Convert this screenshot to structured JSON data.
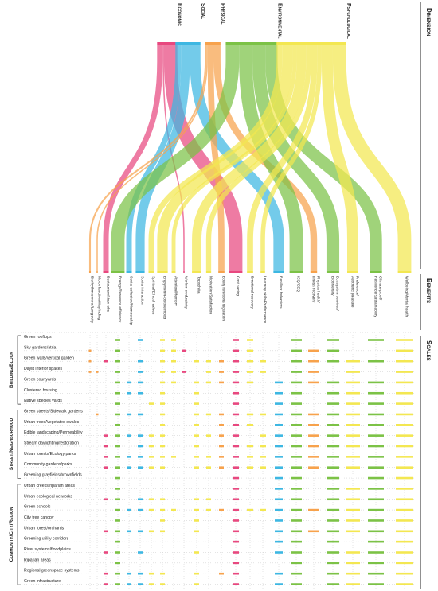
{
  "header": {
    "dimension_label": "Dimension",
    "benefits_label": "Benefits",
    "scales_label": "Scales"
  },
  "dimensions": [
    {
      "label": "Economic",
      "color": "#e8487f"
    },
    {
      "label": "Social",
      "color": "#3db7e2"
    },
    {
      "label": "Physical",
      "color": "#f7a24c"
    },
    {
      "label": "Environmental",
      "color": "#7cc246"
    },
    {
      "label": "Psychological",
      "color": "#f3e751"
    }
  ],
  "benefits": [
    {
      "label": [
        "Biorhythm control/Longevity"
      ],
      "dimension": 2
    },
    {
      "label": [
        "Motor function/Wayfinding"
      ],
      "dimension": 2
    },
    {
      "label": [
        "Ecotourism/New jobs"
      ],
      "dimension": 0
    },
    {
      "label": [
        "Energy/Resource efficiency"
      ],
      "dimension": 3
    },
    {
      "label": [
        "Social cohesion/Membership"
      ],
      "dimension": 1
    },
    {
      "label": [
        "Social interaction"
      ],
      "dimension": 1
    },
    {
      "label": [
        "Spiritual/Ethical values"
      ],
      "dimension": 4
    },
    {
      "label": [
        "Enjoyment/Positive mood"
      ],
      "dimension": 4
    },
    {
      "label": [
        "Attention/Memory"
      ],
      "dimension": 4
    },
    {
      "label": [
        "Worker productivity"
      ],
      "dimension": 0
    },
    {
      "label": [
        "Topophilia"
      ],
      "dimension": 4
    },
    {
      "label": [
        "Motivation/Satisfaction"
      ],
      "dimension": 4
    },
    {
      "label": [
        "Bodily functions regulation"
      ],
      "dimension": 2
    },
    {
      "label": [
        "Cost saving"
      ],
      "dimension": 0
    },
    {
      "label": [
        "Emotional recovery"
      ],
      "dimension": 4
    },
    {
      "label": [
        "Learning skills/Performance"
      ],
      "dimension": 4
    },
    {
      "label": [
        "Resilient behaviors"
      ],
      "dimension": 1
    },
    {
      "label": [
        "IEQ/OEQ"
      ],
      "dimension": 3
    },
    {
      "label": [
        "Physical health/",
        "Illness recovery"
      ],
      "dimension": 2
    },
    {
      "label": [
        "Ecosystem services/",
        "Biodiversity"
      ],
      "dimension": 3
    },
    {
      "label": [
        "Preference/",
        "Aesthetic pleasure"
      ],
      "dimension": 4
    },
    {
      "label": [
        "Climate-proof/",
        "Resilience/Sustainability"
      ],
      "dimension": 3
    },
    {
      "label": [
        "Wellbeing/Mental health"
      ],
      "dimension": 4
    }
  ],
  "scale_groups": [
    {
      "label": "Building/Block",
      "rows": [
        {
          "label": "Green rooftops",
          "cells": [
            0,
            0,
            0,
            1,
            0,
            1,
            0,
            1,
            1,
            0,
            0,
            0,
            0,
            1,
            1,
            0,
            0,
            1,
            0,
            1,
            0,
            1,
            1
          ]
        },
        {
          "label": "Sky gardens/atria",
          "cells": [
            1,
            0,
            0,
            1,
            0,
            0,
            0,
            1,
            1,
            1,
            0,
            0,
            0,
            1,
            1,
            0,
            0,
            1,
            1,
            1,
            0,
            0,
            1
          ]
        },
        {
          "label": "Green walls/vertical garden",
          "cells": [
            1,
            0,
            1,
            1,
            0,
            1,
            0,
            1,
            1,
            0,
            1,
            1,
            1,
            1,
            1,
            1,
            0,
            1,
            1,
            1,
            1,
            1,
            1
          ]
        },
        {
          "label": "Daylit interior spaces",
          "cells": [
            1,
            1,
            0,
            1,
            0,
            1,
            0,
            1,
            1,
            1,
            0,
            1,
            1,
            1,
            1,
            1,
            0,
            1,
            1,
            0,
            1,
            0,
            1
          ]
        },
        {
          "label": "Green courtyards",
          "cells": [
            0,
            0,
            0,
            1,
            1,
            1,
            0,
            1,
            1,
            0,
            1,
            1,
            1,
            1,
            1,
            0,
            1,
            1,
            1,
            1,
            1,
            1,
            1
          ]
        },
        {
          "label": "Clustered housing",
          "cells": [
            0,
            0,
            0,
            1,
            1,
            1,
            0,
            1,
            0,
            0,
            1,
            0,
            0,
            1,
            0,
            0,
            1,
            1,
            0,
            1,
            1,
            1,
            1
          ]
        },
        {
          "label": "Native species yards",
          "cells": [
            0,
            0,
            0,
            1,
            0,
            0,
            1,
            1,
            0,
            0,
            1,
            0,
            0,
            1,
            0,
            0,
            1,
            1,
            0,
            1,
            1,
            1,
            1
          ]
        }
      ]
    },
    {
      "label": "Street/Neighborhood",
      "rows": [
        {
          "label": "Green streets/Sidewalk gardens",
          "cells": [
            0,
            1,
            0,
            1,
            1,
            1,
            0,
            1,
            0,
            0,
            1,
            1,
            1,
            1,
            1,
            1,
            1,
            1,
            1,
            1,
            1,
            1,
            1
          ]
        },
        {
          "label": "Urban trees/Vegetated swales",
          "cells": [
            0,
            0,
            0,
            1,
            0,
            0,
            0,
            1,
            0,
            0,
            1,
            0,
            1,
            1,
            1,
            0,
            1,
            1,
            1,
            1,
            1,
            1,
            1
          ]
        },
        {
          "label": "Edible landscaping/Permeability",
          "cells": [
            0,
            0,
            1,
            1,
            1,
            1,
            1,
            1,
            0,
            0,
            1,
            1,
            1,
            1,
            0,
            1,
            1,
            1,
            1,
            1,
            1,
            1,
            1
          ]
        },
        {
          "label": "Stream daylighting/restoration",
          "cells": [
            0,
            0,
            1,
            1,
            0,
            1,
            1,
            1,
            0,
            0,
            1,
            0,
            1,
            1,
            1,
            1,
            1,
            1,
            1,
            1,
            1,
            1,
            1
          ]
        },
        {
          "label": "Urban forests/Ecology parks",
          "cells": [
            0,
            0,
            1,
            1,
            1,
            1,
            1,
            1,
            1,
            0,
            1,
            1,
            1,
            1,
            1,
            1,
            1,
            1,
            1,
            1,
            1,
            1,
            1
          ]
        },
        {
          "label": "Community gardens/parks",
          "cells": [
            0,
            0,
            1,
            1,
            1,
            1,
            1,
            1,
            0,
            0,
            1,
            1,
            1,
            1,
            1,
            1,
            1,
            1,
            1,
            1,
            1,
            1,
            1
          ]
        },
        {
          "label": "Greening grayfields/brownfields",
          "cells": [
            0,
            0,
            0,
            1,
            0,
            0,
            0,
            0,
            0,
            0,
            0,
            0,
            0,
            1,
            0,
            0,
            1,
            1,
            0,
            1,
            0,
            1,
            1
          ]
        }
      ]
    },
    {
      "label": "Community/City/Region",
      "rows": [
        {
          "label": "Urban creeks/riparian areas",
          "cells": [
            0,
            0,
            0,
            1,
            0,
            0,
            0,
            0,
            0,
            0,
            0,
            0,
            0,
            1,
            0,
            0,
            1,
            1,
            0,
            1,
            1,
            1,
            1
          ]
        },
        {
          "label": "Urban ecological networks",
          "cells": [
            0,
            0,
            1,
            1,
            0,
            1,
            1,
            1,
            0,
            0,
            1,
            1,
            0,
            1,
            0,
            0,
            1,
            1,
            0,
            1,
            1,
            1,
            1
          ]
        },
        {
          "label": "Green schools",
          "cells": [
            0,
            0,
            0,
            1,
            1,
            1,
            1,
            1,
            1,
            0,
            1,
            1,
            1,
            1,
            1,
            1,
            1,
            1,
            1,
            1,
            1,
            1,
            1
          ]
        },
        {
          "label": "City tree canopy",
          "cells": [
            0,
            0,
            0,
            1,
            0,
            0,
            0,
            1,
            0,
            0,
            1,
            0,
            0,
            1,
            0,
            0,
            1,
            1,
            0,
            1,
            1,
            1,
            1
          ]
        },
        {
          "label": "Urban forest/orchards",
          "cells": [
            0,
            0,
            1,
            1,
            1,
            1,
            1,
            1,
            0,
            0,
            1,
            0,
            0,
            1,
            0,
            0,
            1,
            1,
            1,
            1,
            1,
            1,
            1
          ]
        },
        {
          "label": "Greening utility corridors",
          "cells": [
            0,
            0,
            0,
            1,
            0,
            0,
            0,
            0,
            0,
            0,
            0,
            0,
            0,
            1,
            0,
            0,
            1,
            1,
            0,
            1,
            0,
            1,
            1
          ]
        },
        {
          "label": "River systems/floodplains",
          "cells": [
            0,
            0,
            1,
            1,
            0,
            1,
            0,
            0,
            0,
            0,
            1,
            0,
            0,
            1,
            0,
            0,
            1,
            1,
            0,
            1,
            1,
            1,
            1
          ]
        },
        {
          "label": "Riparian areas",
          "cells": [
            0,
            0,
            0,
            1,
            0,
            0,
            0,
            0,
            0,
            0,
            0,
            0,
            0,
            1,
            0,
            0,
            0,
            1,
            0,
            1,
            1,
            1,
            1
          ]
        },
        {
          "label": "Regional greenspace systems",
          "cells": [
            0,
            0,
            1,
            1,
            1,
            1,
            1,
            1,
            0,
            0,
            1,
            0,
            1,
            1,
            0,
            0,
            1,
            1,
            0,
            1,
            1,
            1,
            1
          ]
        },
        {
          "label": "Green infrastructure",
          "cells": [
            0,
            0,
            1,
            1,
            1,
            1,
            1,
            1,
            0,
            0,
            1,
            0,
            0,
            1,
            0,
            0,
            1,
            1,
            0,
            1,
            1,
            1,
            1
          ]
        }
      ]
    }
  ]
}
